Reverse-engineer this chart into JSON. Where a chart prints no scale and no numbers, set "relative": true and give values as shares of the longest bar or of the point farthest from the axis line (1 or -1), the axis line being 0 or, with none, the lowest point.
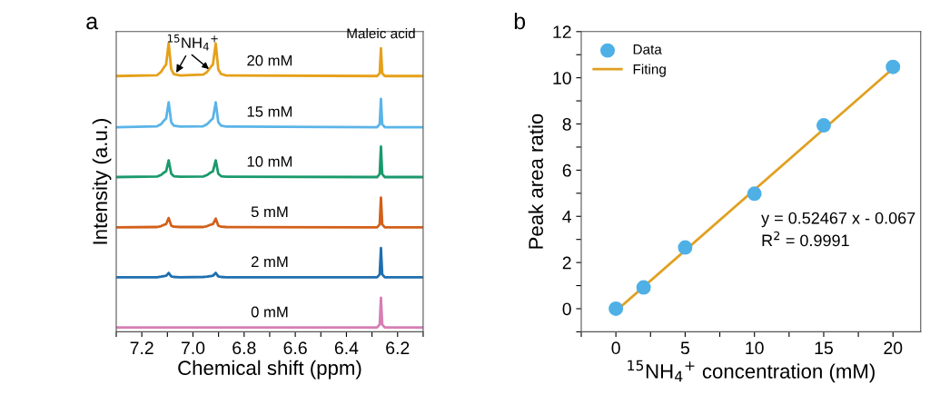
{
  "chart_data": [
    {
      "type": "line",
      "title": "a",
      "xlabel": "Chemical shift (ppm)",
      "ylabel": "Intensity (a.u.)",
      "relative": true,
      "tick_labels": "x",
      "marker": "none",
      "line_style": "solid",
      "grid": false,
      "legend": false,
      "xlim": [
        7.3,
        6.1
      ],
      "xticks": [
        {
          "value": 7.3,
          "label": null
        },
        7.2,
        {
          "value": 7.1,
          "label": null
        },
        {
          "value": 7.0,
          "label": "7.0"
        },
        {
          "value": 6.9,
          "label": null
        },
        6.8,
        {
          "value": 6.7,
          "label": null
        },
        6.6,
        {
          "value": 6.5,
          "label": null
        },
        6.4,
        {
          "value": 6.3,
          "label": null
        },
        6.2,
        {
          "value": 6.1,
          "label": null
        }
      ],
      "x": [
        7.3,
        7.14,
        7.125,
        7.113,
        7.105,
        7.095,
        7.085,
        7.075,
        7.05,
        6.96,
        6.945,
        6.931,
        6.922,
        6.911,
        6.901,
        6.89,
        6.87,
        6.28,
        6.27,
        6.265,
        6.26,
        6.25,
        6.1
      ],
      "series": [
        {
          "name": "20 mM",
          "color": "#e6a019",
          "values": [
            0.886,
            0.889,
            0.9,
            0.917,
            0.926,
            1.0,
            0.909,
            0.893,
            0.888,
            0.891,
            0.9,
            0.917,
            0.926,
            0.999,
            0.909,
            0.893,
            0.888,
            0.886,
            0.896,
            0.982,
            0.896,
            0.886,
            0.886
          ]
        },
        {
          "name": "15 mM",
          "color": "#5ab4e8",
          "values": [
            0.709,
            0.712,
            0.719,
            0.732,
            0.739,
            0.795,
            0.726,
            0.714,
            0.711,
            0.712,
            0.719,
            0.732,
            0.739,
            0.795,
            0.726,
            0.714,
            0.711,
            0.709,
            0.719,
            0.807,
            0.719,
            0.709,
            0.709
          ]
        },
        {
          "name": "10 mM",
          "color": "#1a9a6c",
          "values": [
            0.536,
            0.538,
            0.543,
            0.552,
            0.556,
            0.594,
            0.548,
            0.539,
            0.537,
            0.538,
            0.543,
            0.552,
            0.556,
            0.594,
            0.548,
            0.539,
            0.537,
            0.536,
            0.547,
            0.642,
            0.547,
            0.536,
            0.536
          ]
        },
        {
          "name": "5 mM",
          "color": "#d2601a",
          "values": [
            0.362,
            0.363,
            0.366,
            0.371,
            0.373,
            0.394,
            0.368,
            0.364,
            0.363,
            0.363,
            0.366,
            0.371,
            0.373,
            0.392,
            0.368,
            0.364,
            0.363,
            0.362,
            0.372,
            0.465,
            0.372,
            0.362,
            0.362
          ]
        },
        {
          "name": "2 mM",
          "color": "#1f6fb0",
          "values": [
            0.189,
            0.189,
            0.191,
            0.193,
            0.194,
            0.204,
            0.192,
            0.19,
            0.189,
            0.19,
            0.191,
            0.193,
            0.194,
            0.204,
            0.192,
            0.19,
            0.189,
            0.189,
            0.199,
            0.29,
            0.199,
            0.189,
            0.189
          ]
        },
        {
          "name": "0 mM",
          "color": "#d67fb5",
          "values": [
            0.015,
            0.015,
            0.015,
            0.015,
            0.015,
            0.015,
            0.015,
            0.015,
            0.015,
            0.015,
            0.015,
            0.015,
            0.015,
            0.015,
            0.015,
            0.015,
            0.015,
            0.015,
            0.025,
            0.118,
            0.025,
            0.015,
            0.015
          ]
        }
      ],
      "annotations": [
        {
          "text": "$^{15}$NH$_{4}$$^{+}$",
          "x": 7.07,
          "y": 0.89
        },
        {
          "text": "Maleic acid",
          "x": 6.265,
          "y": 0.982
        }
      ]
    },
    {
      "type": "scatter",
      "title": "b",
      "xlabel": "$^{15}$NH$_{4}$$^{+}$ concentration (mM)",
      "ylabel": "Peak area ratio",
      "grid": false,
      "legend": "top left",
      "xlim": [
        -2.5,
        22
      ],
      "xticks": [
        {
          "value": -2.5,
          "label": null
        },
        0,
        {
          "value": 2.5,
          "label": null
        },
        5,
        {
          "value": 7.5,
          "label": null
        },
        10,
        {
          "value": 12.5,
          "label": null
        },
        15,
        {
          "value": 17.5,
          "label": null
        },
        20
      ],
      "ylim": [
        -1,
        12
      ],
      "yticks": [
        {
          "value": -1,
          "label": null
        },
        0,
        {
          "value": 1,
          "label": null
        },
        2,
        {
          "value": 3,
          "label": null
        },
        4,
        {
          "value": 5,
          "label": null
        },
        6,
        {
          "value": 7,
          "label": null
        },
        8,
        {
          "value": 9,
          "label": null
        },
        10,
        {
          "value": 11,
          "label": null
        },
        12
      ],
      "series": [
        {
          "name": "Data",
          "type": "scatter",
          "marker": "circle",
          "color": "#4fb0e6",
          "x": [
            0,
            2,
            5,
            10,
            15,
            20
          ],
          "values": [
            0,
            0.92,
            2.65,
            4.98,
            7.94,
            10.47
          ]
        },
        {
          "name": "Fiting",
          "type": "line",
          "marker": "none",
          "line_style": "solid",
          "color": "#e0a020",
          "x": [
            0,
            20
          ],
          "values": [
            -0.1,
            10.4
          ]
        }
      ],
      "annotations": [
        "y = 0.52467 x - 0.067",
        "R$^{2}$ = 0.9991"
      ]
    }
  ]
}
